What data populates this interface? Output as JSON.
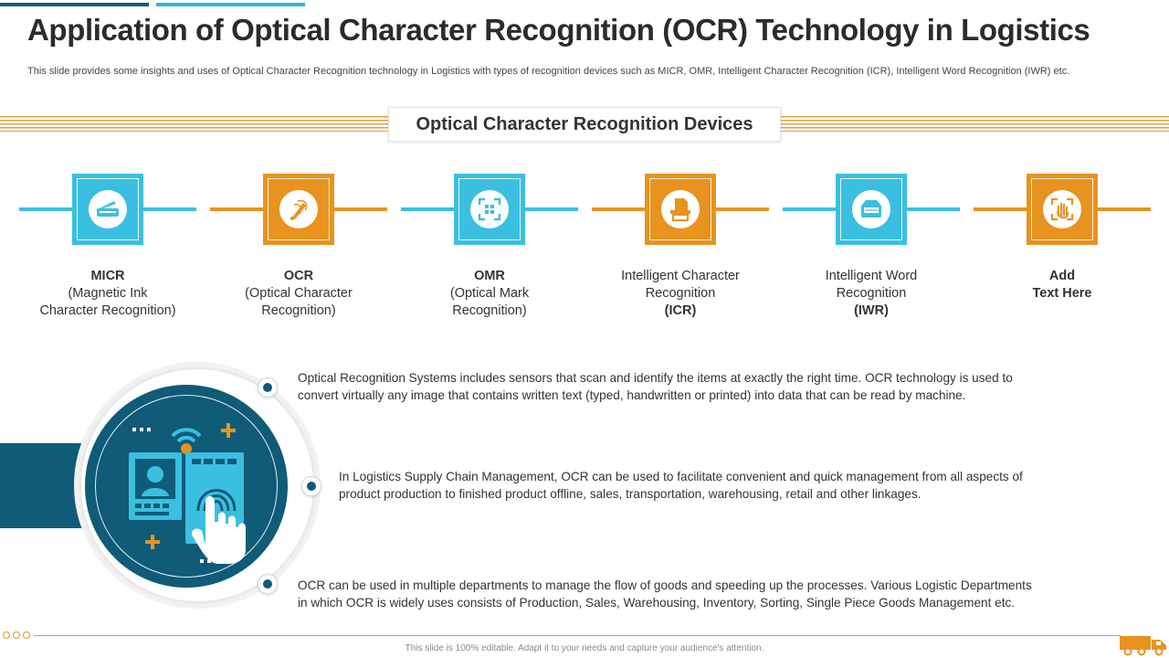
{
  "title": "Application of Optical Character Recognition (OCR) Technology in Logistics",
  "subtitle": "This slide provides some insights and uses of Optical Character Recognition technology in Logistics with types of recognition devices such as MICR, OMR, Intelligent Character Recognition (ICR), Intelligent Word Recognition (IWR) etc.",
  "devices_heading": "Optical Character Recognition Devices",
  "devices": [
    {
      "icon": "scanner-icon",
      "color": "#3bbfe0",
      "lines": [
        {
          "text": "MICR",
          "bold": true
        },
        {
          "text": "(Magnetic Ink",
          "bold": false
        },
        {
          "text": "Character Recognition)",
          "bold": false
        }
      ]
    },
    {
      "icon": "pen-drawing-icon",
      "color": "#e8931f",
      "lines": [
        {
          "text": "OCR",
          "bold": true
        },
        {
          "text": "(Optical Character",
          "bold": false
        },
        {
          "text": "Recognition)",
          "bold": false
        }
      ]
    },
    {
      "icon": "face-scan-icon",
      "color": "#3bbfe0",
      "lines": [
        {
          "text": "OMR",
          "bold": true
        },
        {
          "text": "(Optical Mark",
          "bold": false
        },
        {
          "text": "Recognition)",
          "bold": false
        }
      ]
    },
    {
      "icon": "document-scanner-icon",
      "color": "#e8931f",
      "lines": [
        {
          "text": "Intelligent Character",
          "bold": false
        },
        {
          "text": "Recognition",
          "bold": false
        },
        {
          "text": "(ICR)",
          "bold": true
        }
      ]
    },
    {
      "icon": "flatbed-scanner-icon",
      "color": "#3bbfe0",
      "lines": [
        {
          "text": "Intelligent Word",
          "bold": false
        },
        {
          "text": "Recognition",
          "bold": false
        },
        {
          "text": "(IWR)",
          "bold": true
        }
      ]
    },
    {
      "icon": "hand-scan-icon",
      "color": "#e8931f",
      "lines": [
        {
          "text": "Add",
          "bold": true
        },
        {
          "text": "Text Here",
          "bold": true
        }
      ]
    }
  ],
  "points": [
    {
      "line1": "Optical Recognition Systems includes sensors that scan and identify the items at exactly the right time. OCR technology is used to",
      "line2": "convert virtually any image that contains written text (typed, handwritten or printed) into data that can be read by machine."
    },
    {
      "line1": "In Logistics Supply Chain Management, OCR can be used to facilitate convenient and quick management from all aspects of",
      "line2": "product production to finished product offline, sales, transportation, warehousing, retail and other linkages."
    },
    {
      "line1": "OCR can be used in multiple departments to manage the flow of goods and speeding up the processes. Various Logistic Departments",
      "line2": "in which OCR is widely uses consists of Production, Sales, Warehousing, Inventory, Sorting, Single Piece Goods Management etc."
    }
  ],
  "footer": "This slide is 100% editable. Adapt it to your needs and capture your audience's attention.",
  "colors": {
    "dark_blue": "#0f5b78",
    "light_blue": "#3bbfe0",
    "orange": "#e8931f"
  }
}
